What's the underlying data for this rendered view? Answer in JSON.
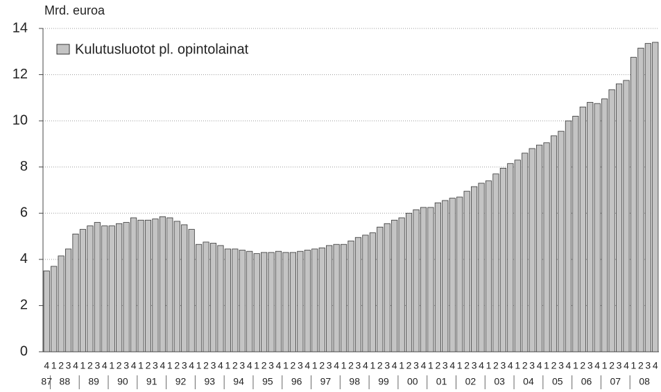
{
  "chart_data": {
    "type": "bar",
    "y_axis_label": "Mrd. euroa",
    "legend": "Kulutusluotot pl. opintolainat",
    "color": "#c4c4c4",
    "grid": true,
    "ylim": [
      0,
      14
    ],
    "yticks": [
      0,
      2,
      4,
      6,
      8,
      10,
      12,
      14
    ],
    "categories": [
      "4",
      "1",
      "2",
      "3",
      "4",
      "1",
      "2",
      "3",
      "4",
      "1",
      "2",
      "3",
      "4",
      "1",
      "2",
      "3",
      "4",
      "1",
      "2",
      "3",
      "4",
      "1",
      "2",
      "3",
      "4",
      "1",
      "2",
      "3",
      "4",
      "1",
      "2",
      "3",
      "4",
      "1",
      "2",
      "3",
      "4",
      "1",
      "2",
      "3",
      "4",
      "1",
      "2",
      "3",
      "4",
      "1",
      "2",
      "3",
      "4",
      "1",
      "2",
      "3",
      "4",
      "1",
      "2",
      "3",
      "4",
      "1",
      "2",
      "3",
      "4",
      "1",
      "2",
      "3",
      "4",
      "1",
      "2",
      "3",
      "4",
      "1",
      "2",
      "3",
      "4",
      "1",
      "2",
      "3",
      "4",
      "1",
      "2",
      "3",
      "4",
      "1",
      "2",
      "3",
      "4"
    ],
    "year_labels": [
      "87",
      "88",
      "89",
      "90",
      "91",
      "92",
      "93",
      "94",
      "95",
      "96",
      "97",
      "98",
      "99",
      "00",
      "01",
      "02",
      "03",
      "04",
      "05",
      "06",
      "07",
      "08"
    ],
    "values": [
      3.5,
      3.7,
      4.15,
      4.45,
      5.1,
      5.3,
      5.45,
      5.6,
      5.45,
      5.45,
      5.55,
      5.6,
      5.8,
      5.7,
      5.7,
      5.75,
      5.85,
      5.8,
      5.65,
      5.5,
      5.3,
      4.65,
      4.75,
      4.7,
      4.6,
      4.45,
      4.45,
      4.4,
      4.35,
      4.25,
      4.3,
      4.3,
      4.35,
      4.3,
      4.3,
      4.35,
      4.4,
      4.45,
      4.5,
      4.6,
      4.65,
      4.65,
      4.8,
      4.95,
      5.05,
      5.15,
      5.4,
      5.55,
      5.7,
      5.8,
      6.0,
      6.15,
      6.25,
      6.25,
      6.45,
      6.55,
      6.65,
      6.7,
      6.95,
      7.15,
      7.3,
      7.4,
      7.7,
      7.95,
      8.15,
      8.3,
      8.6,
      8.8,
      8.95,
      9.05,
      9.35,
      9.55,
      10.0,
      10.2,
      10.6,
      10.8,
      10.75,
      10.95,
      11.35,
      11.6,
      11.75,
      12.75,
      13.15,
      13.35,
      13.4
    ]
  }
}
